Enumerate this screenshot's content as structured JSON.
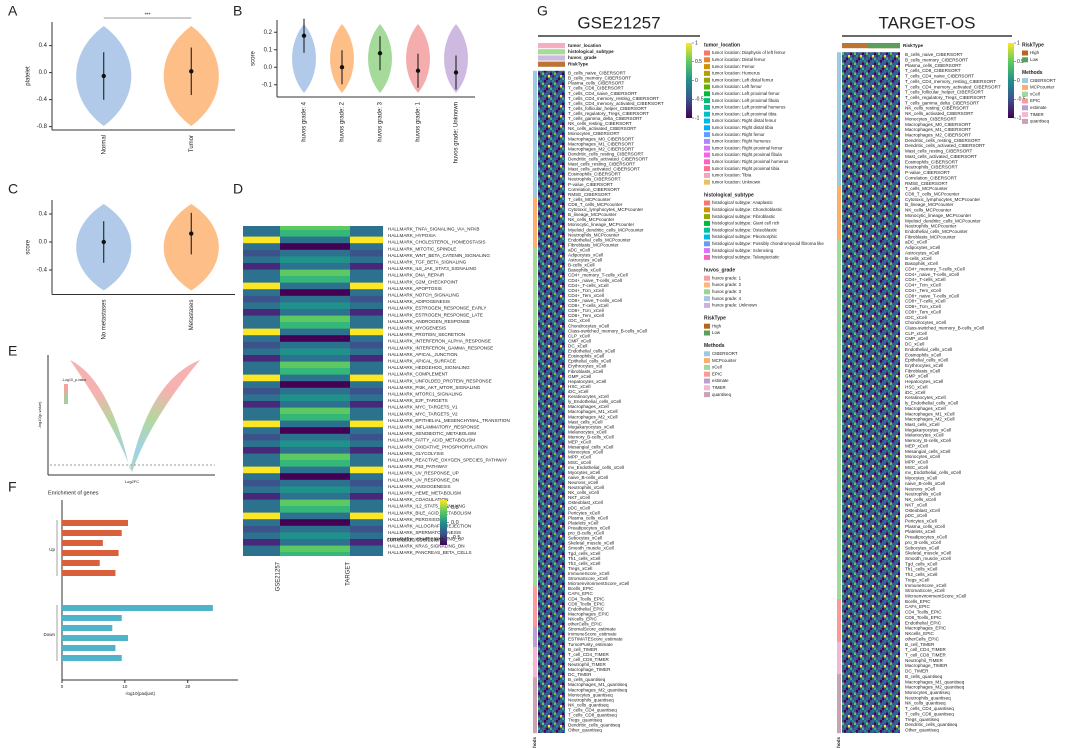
{
  "panel_labels": [
    "A",
    "B",
    "C",
    "D",
    "E",
    "F",
    "G"
  ],
  "chart_data": [
    {
      "type": "violin",
      "ylabel": "platelet",
      "categories": [
        "Normal",
        "Tumor"
      ],
      "values": [
        -0.05,
        0.02
      ],
      "colors": [
        "#a9c4e8",
        "#fdb77a"
      ],
      "ylim": [
        -0.85,
        0.75
      ],
      "yticks": [
        -0.8,
        -0.4,
        {
          "value": 0,
          "label": "0.0"
        },
        0.4
      ],
      "annotation": "***"
    },
    {
      "type": "violin",
      "ylabel": "score",
      "categories": [
        "huvos grade: 4",
        "huvos grade: 2",
        "huvos grade: 3",
        "huvos grade: 1",
        "huvos grade: Unknown"
      ],
      "values": [
        0.18,
        0.0,
        0.08,
        -0.02,
        -0.03
      ],
      "colors": [
        "#a9c4e8",
        "#fdb77a",
        "#9bd68f",
        "#f4a3a3",
        "#c9b3dd"
      ],
      "ylim": [
        -0.17,
        0.27
      ],
      "yticks": [
        -0.1,
        {
          "value": 0,
          "label": "0.0"
        },
        0.1,
        0.2
      ]
    },
    {
      "type": "violin",
      "ylabel": "score",
      "categories": [
        "No metastases",
        "Metastases"
      ],
      "values": [
        0.0,
        0.12
      ],
      "colors": [
        "#a9c4e8",
        "#fdb77a"
      ],
      "ylim": [
        -0.75,
        0.6
      ],
      "yticks": [
        -0.4,
        {
          "value": 0,
          "label": "0.0"
        },
        0.4
      ]
    },
    {
      "type": "heatmap",
      "columns": [
        "GSE21257",
        "TARGET"
      ],
      "rows": [
        "HALLMARK_TNFA_SIGNALING_VIA_NFKB",
        "HALLMARK_HYPOXIA",
        "HALLMARK_CHOLESTEROL_HOMEOSTASIS",
        "HALLMARK_MITOTIC_SPINDLE",
        "HALLMARK_WNT_BETA_CATENIN_SIGNALING",
        "HALLMARK_TGF_BETA_SIGNALING",
        "HALLMARK_IL6_JAK_STAT3_SIGNALING",
        "HALLMARK_DNA_REPAIR",
        "HALLMARK_G2M_CHECKPOINT",
        "HALLMARK_APOPTOSIS",
        "HALLMARK_NOTCH_SIGNALING",
        "HALLMARK_ADIPOGENESIS",
        "HALLMARK_ESTROGEN_RESPONSE_EARLY",
        "HALLMARK_ESTROGEN_RESPONSE_LATE",
        "HALLMARK_ANDROGEN_RESPONSE",
        "HALLMARK_MYOGENESIS",
        "HALLMARK_PROTEIN_SECRETION",
        "HALLMARK_INTERFERON_ALPHA_RESPONSE",
        "HALLMARK_INTERFERON_GAMMA_RESPONSE",
        "HALLMARK_APICAL_JUNCTION",
        "HALLMARK_APICAL_SURFACE",
        "HALLMARK_HEDGEHOG_SIGNALING",
        "HALLMARK_COMPLEMENT",
        "HALLMARK_UNFOLDED_PROTEIN_RESPONSE",
        "HALLMARK_PI3K_AKT_MTOR_SIGNALING",
        "HALLMARK_MTORC1_SIGNALING",
        "HALLMARK_E2F_TARGETS",
        "HALLMARK_MYC_TARGETS_V1",
        "HALLMARK_MYC_TARGETS_V2",
        "HALLMARK_EPITHELIAL_MESENCHYMAL_TRANSITION",
        "HALLMARK_INFLAMMATORY_RESPONSE",
        "HALLMARK_XENOBIOTIC_METABOLISM",
        "HALLMARK_FATTY_ACID_METABOLISM",
        "HALLMARK_OXIDATIVE_PHOSPHORYLATION",
        "HALLMARK_GLYCOLYSIS",
        "HALLMARK_REACTIVE_OXYGEN_SPECIES_PATHWAY",
        "HALLMARK_P53_PATHWAY",
        "HALLMARK_UV_RESPONSE_UP",
        "HALLMARK_UV_RESPONSE_DN",
        "HALLMARK_ANGIOGENESIS",
        "HALLMARK_HEME_METABOLISM",
        "HALLMARK_COAGULATION",
        "HALLMARK_IL2_STAT5_SIGNALING",
        "HALLMARK_BILE_ACID_METABOLISM",
        "HALLMARK_PEROXISOME",
        "HALLMARK_ALLOGRAFT_REJECTION",
        "HALLMARK_SPERMATOGENESIS",
        "HALLMARK_KRAS_SIGNALING_UP",
        "HALLMARK_KRAS_SIGNALING_DN",
        "HALLMARK_PANCREAS_BETA_CELLS"
      ],
      "legend_title": "correlation coefficient",
      "clim": [
        -0.75,
        0.75
      ],
      "cticks": [
        -0.5,
        {
          "value": 0,
          "label": "0.0"
        },
        0.5
      ]
    },
    {
      "type": "scatter",
      "xlabel": "Log2FC",
      "ylabel": "-log10(p-value)",
      "legend_title": "-Log10_p-value"
    },
    {
      "type": "barh",
      "title": "Enrichment of genes",
      "xlabel": "-log10(padjust)",
      "xlim": [
        0,
        28
      ],
      "xticks": [
        0,
        10,
        20
      ],
      "series": [
        {
          "name": "Up",
          "color": "#d9603b",
          "values": [
            10.5,
            9.5,
            6.5,
            9,
            6,
            8.5
          ]
        },
        {
          "name": "Down",
          "color": "#4fb3c9",
          "values": [
            24,
            9.5,
            8,
            10.5,
            8.5,
            9.5
          ]
        }
      ]
    }
  ],
  "figure_g": {
    "methods": {
      "title": "Methods",
      "items": [
        {
          "name": "CIBERSORT",
          "color": "#9ecae1"
        },
        {
          "name": "MCPcounter",
          "color": "#fdae6b"
        },
        {
          "name": "xCell",
          "color": "#a1d99b"
        },
        {
          "name": "EPIC",
          "color": "#fb9a99"
        },
        {
          "name": "estimate",
          "color": "#b9a0d0"
        },
        {
          "name": "TIMER",
          "color": "#f4b6d2"
        },
        {
          "name": "quantiseq",
          "color": "#c7a3b3"
        }
      ]
    },
    "left": {
      "title": "GSE21257",
      "strip_label": "Methods",
      "annotations": [
        "tumor_location",
        "histological_subtype",
        "huvos_grade",
        "RiskType"
      ],
      "clim": [
        -1,
        1
      ],
      "cticks": [
        1,
        0.5,
        0,
        -0.5,
        -1
      ],
      "legends": [
        {
          "title": "tumor_location",
          "items": [
            {
              "name": "tumor location: Diaphysis of left femur",
              "color": "#f8766d"
            },
            {
              "name": "tumor location: Distal femur",
              "color": "#e88526"
            },
            {
              "name": "tumor location: Femur",
              "color": "#d39200"
            },
            {
              "name": "tumor location: Humerus",
              "color": "#b79f00"
            },
            {
              "name": "tumor location: Left distal femur",
              "color": "#93aa00"
            },
            {
              "name": "tumor location: Left femur",
              "color": "#5eb300"
            },
            {
              "name": "tumor location: Left proximal femur",
              "color": "#00ba38"
            },
            {
              "name": "tumor location: Left proximal fibula",
              "color": "#00bf74"
            },
            {
              "name": "tumor location: Left proximal humerus",
              "color": "#00c19f"
            },
            {
              "name": "tumor location: Left proximal tibia",
              "color": "#00bfc4"
            },
            {
              "name": "tumor location: Right distal femur",
              "color": "#00b9e3"
            },
            {
              "name": "tumor location: Right distal tibia",
              "color": "#00adfa"
            },
            {
              "name": "tumor location: Right femur",
              "color": "#619cff"
            },
            {
              "name": "tumor location: Right humerus",
              "color": "#ae87ff"
            },
            {
              "name": "tumor location: Right proximal femur",
              "color": "#db72fb"
            },
            {
              "name": "tumor location: Right proximal fibula",
              "color": "#f564e3"
            },
            {
              "name": "tumor location: Right proximal humerus",
              "color": "#ff61c3"
            },
            {
              "name": "tumor location: Right proximal tibia",
              "color": "#ff6c91"
            },
            {
              "name": "tumor location: Tibia",
              "color": "#f3a6b8"
            },
            {
              "name": "tumor location: Unknown",
              "color": "#e6c35c"
            }
          ]
        },
        {
          "title": "histological_subtype",
          "items": [
            {
              "name": "histological subtype: Anaplastic",
              "color": "#f8766d"
            },
            {
              "name": "histological subtype: Chondroblastic",
              "color": "#d39200"
            },
            {
              "name": "histological subtype: Fibroblastic",
              "color": "#93aa00"
            },
            {
              "name": "histological subtype: Giant cell rich",
              "color": "#00ba38"
            },
            {
              "name": "histological subtype: Osteoblastic",
              "color": "#00c19f"
            },
            {
              "name": "histological subtype: Pleomorphic",
              "color": "#00b9e3"
            },
            {
              "name": "histological subtype: Possibly chondromyxoid fibroma like",
              "color": "#619cff"
            },
            {
              "name": "histological subtype: Sclerosing",
              "color": "#db72fb"
            },
            {
              "name": "histological subtype: Telangiectatic",
              "color": "#ff61c3"
            }
          ]
        },
        {
          "title": "huvos_grade",
          "items": [
            {
              "name": "huvos grade: 1",
              "color": "#f4a3a3"
            },
            {
              "name": "huvos grade: 2",
              "color": "#fdb77a"
            },
            {
              "name": "huvos grade: 3",
              "color": "#9bd68f"
            },
            {
              "name": "huvos grade: 4",
              "color": "#a9c4e8"
            },
            {
              "name": "huvos grade: Unknown",
              "color": "#c9b3dd"
            }
          ]
        },
        {
          "title": "RiskType",
          "items": [
            {
              "name": "High",
              "color": "#b5651d"
            },
            {
              "name": "Low",
              "color": "#5aa05a"
            }
          ]
        }
      ],
      "rows": [
        "B_cells_naive_CIBERSORT",
        "B_cells_memory_CIBERSORT",
        "Plasma_cells_CIBERSORT",
        "T_cells_CD8_CIBERSORT",
        "T_cells_CD4_naive_CIBERSORT",
        "T_cells_CD4_memory_resting_CIBERSORT",
        "T_cells_CD4_memory_activated_CIBERSORT",
        "T_cells_follicular_helper_CIBERSORT",
        "T_cells_regulatory_Tregs_CIBERSORT",
        "T_cells_gamma_delta_CIBERSORT",
        "NK_cells_resting_CIBERSORT",
        "NK_cells_activated_CIBERSORT",
        "Monocytes_CIBERSORT",
        "Macrophages_M0_CIBERSORT",
        "Macrophages_M1_CIBERSORT",
        "Macrophages_M2_CIBERSORT",
        "Dendritic_cells_resting_CIBERSORT",
        "Dendritic_cells_activated_CIBERSORT",
        "Mast_cells_resting_CIBERSORT",
        "Mast_cells_activated_CIBERSORT",
        "Eosinophils_CIBERSORT",
        "Neutrophils_CIBERSORT",
        "P-value_CIBERSORT",
        "Correlation_CIBERSORT",
        "RMSE_CIBERSORT",
        "T_cells_MCPcounter",
        "CD8_T_cells_MCPcounter",
        "Cytotoxic_lymphocytes_MCPcounter",
        "B_lineage_MCPcounter",
        "NK_cells_MCPcounter",
        "Monocytic_lineage_MCPcounter",
        "Myeloid_dendritic_cells_MCPcounter",
        "Neutrophils_MCPcounter",
        "Endothelial_cells_MCPcounter",
        "Fibroblasts_MCPcounter",
        "aDC_xCell",
        "Adipocytes_xCell",
        "Astrocytes_xCell",
        "B-cells_xCell",
        "Basophils_xCell",
        "CD4+_memory_T-cells_xCell",
        "CD4+_naive_T-cells_xCell",
        "CD4+_T-cells_xCell",
        "CD4+_Tcm_xCell",
        "CD4+_Tem_xCell",
        "CD8+_naive_T-cells_xCell",
        "CD8+_T-cells_xCell",
        "CD8+_Tcm_xCell",
        "CD8+_Tem_xCell",
        "cDC_xCell",
        "Chondrocytes_xCell",
        "Class-switched_memory_B-cells_xCell",
        "CLP_xCell",
        "CMP_xCell",
        "DC_xCell",
        "Endothelial_cells_xCell",
        "Eosinophils_xCell",
        "Epithelial_cells_xCell",
        "Erythrocytes_xCell",
        "Fibroblasts_xCell",
        "GMP_xCell",
        "Hepatocytes_xCell",
        "HSC_xCell",
        "iDC_xCell",
        "Keratinocytes_xCell",
        "ly_Endothelial_cells_xCell",
        "Macrophages_xCell",
        "Macrophages_M1_xCell",
        "Macrophages_M2_xCell",
        "Mast_cells_xCell",
        "Megakaryocytes_xCell",
        "Melanocytes_xCell",
        "Memory_B-cells_xCell",
        "MEP_xCell",
        "Mesangial_cells_xCell",
        "Monocytes_xCell",
        "MPP_xCell",
        "MSC_xCell",
        "mv_Endothelial_cells_xCell",
        "Myocytes_xCell",
        "naive_B-cells_xCell",
        "Neurons_xCell",
        "Neutrophils_xCell",
        "NK_cells_xCell",
        "NKT_xCell",
        "Osteoblast_xCell",
        "pDC_xCell",
        "Pericytes_xCell",
        "Plasma_cells_xCell",
        "Platelets_xCell",
        "Preadipocytes_xCell",
        "pro_B-cells_xCell",
        "Sebocytes_xCell",
        "Skeletal_muscle_xCell",
        "Smooth_muscle_xCell",
        "Tgd_cells_xCell",
        "Th1_cells_xCell",
        "Th2_cells_xCell",
        "Tregs_xCell",
        "ImmuneScore_xCell",
        "StromaScore_xCell",
        "MicroenvironmentScore_xCell",
        "Bcells_EPIC",
        "CAFs_EPIC",
        "CD4_Tcells_EPIC",
        "CD8_Tcells_EPIC",
        "Endothelial_EPIC",
        "Macrophages_EPIC",
        "NKcells_EPIC",
        "otherCells_EPIC",
        "StromalScore_estimate",
        "ImmuneScore_estimate",
        "ESTIMATEScore_estimate",
        "TumorPurity_estimate",
        "B_cell_TIMER",
        "T_cell_CD4_TIMER",
        "T_cell_CD8_TIMER",
        "Neutrophil_TIMER",
        "Macrophage_TIMER",
        "DC_TIMER",
        "B_cells_quantiseq",
        "Macrophages_M1_quantiseq",
        "Macrophages_M2_quantiseq",
        "Monocytes_quantiseq",
        "Neutrophils_quantiseq",
        "NK_cells_quantiseq",
        "T_cells_CD4_quantiseq",
        "T_cells_CD8_quantiseq",
        "Tregs_quantiseq",
        "Dendritic_cells_quantiseq",
        "Other_quantiseq"
      ]
    },
    "right": {
      "title": "TARGET-OS",
      "strip_label": "Methods",
      "annotations": [
        "RiskType"
      ],
      "clim": [
        -1,
        1
      ],
      "cticks": [
        1,
        0.5,
        0,
        -0.5,
        -1
      ],
      "legends": [
        {
          "title": "RiskType",
          "items": [
            {
              "name": "High",
              "color": "#b5651d"
            },
            {
              "name": "Low",
              "color": "#5aa05a"
            }
          ]
        }
      ],
      "rows": [
        "B_cells_naive_CIBERSORT",
        "B_cells_memory_CIBERSORT",
        "Plasma_cells_CIBERSORT",
        "T_cells_CD8_CIBERSORT",
        "T_cells_CD4_naive_CIBERSORT",
        "T_cells_CD4_memory_resting_CIBERSORT",
        "T_cells_CD4_memory_activated_CIBERSORT",
        "T_cells_follicular_helper_CIBERSORT",
        "T_cells_regulatory_Tregs_CIBERSORT",
        "T_cells_gamma_delta_CIBERSORT",
        "NK_cells_resting_CIBERSORT",
        "NK_cells_activated_CIBERSORT",
        "Monocytes_CIBERSORT",
        "Macrophages_M0_CIBERSORT",
        "Macrophages_M1_CIBERSORT",
        "Macrophages_M2_CIBERSORT",
        "Dendritic_cells_resting_CIBERSORT",
        "Dendritic_cells_activated_CIBERSORT",
        "Mast_cells_resting_CIBERSORT",
        "Mast_cells_activated_CIBERSORT",
        "Eosinophils_CIBERSORT",
        "Neutrophils_CIBERSORT",
        "P-value_CIBERSORT",
        "Correlation_CIBERSORT",
        "RMSE_CIBERSORT",
        "T_cells_MCPcounter",
        "CD8_T_cells_MCPcounter",
        "Cytotoxic_lymphocytes_MCPcounter",
        "B_lineage_MCPcounter",
        "NK_cells_MCPcounter",
        "Monocytic_lineage_MCPcounter",
        "Myeloid_dendritic_cells_MCPcounter",
        "Neutrophils_MCPcounter",
        "Endothelial_cells_MCPcounter",
        "Fibroblasts_MCPcounter",
        "aDC_xCell",
        "Adipocytes_xCell",
        "Astrocytes_xCell",
        "B-cells_xCell",
        "Basophils_xCell",
        "CD4+_memory_T-cells_xCell",
        "CD4+_naive_T-cells_xCell",
        "CD4+_T-cells_xCell",
        "CD4+_Tcm_xCell",
        "CD4+_Tem_xCell",
        "CD8+_naive_T-cells_xCell",
        "CD8+_T-cells_xCell",
        "CD8+_Tcm_xCell",
        "CD8+_Tem_xCell",
        "cDC_xCell",
        "Chondrocytes_xCell",
        "Class-switched_memory_B-cells_xCell",
        "CLP_xCell",
        "CMP_xCell",
        "DC_xCell",
        "Endothelial_cells_xCell",
        "Eosinophils_xCell",
        "Epithelial_cells_xCell",
        "Erythrocytes_xCell",
        "Fibroblasts_xCell",
        "GMP_xCell",
        "Hepatocytes_xCell",
        "HSC_xCell",
        "iDC_xCell",
        "Keratinocytes_xCell",
        "ly_Endothelial_cells_xCell",
        "Macrophages_xCell",
        "Macrophages_M1_xCell",
        "Macrophages_M2_xCell",
        "Mast_cells_xCell",
        "Megakaryocytes_xCell",
        "Melanocytes_xCell",
        "Memory_B-cells_xCell",
        "MEP_xCell",
        "Mesangial_cells_xCell",
        "Monocytes_xCell",
        "MPP_xCell",
        "MSC_xCell",
        "mv_Endothelial_cells_xCell",
        "Myocytes_xCell",
        "naive_B-cells_xCell",
        "Neurons_xCell",
        "Neutrophils_xCell",
        "NK_cells_xCell",
        "NKT_xCell",
        "Osteoblast_xCell",
        "pDC_xCell",
        "Pericytes_xCell",
        "Plasma_cells_xCell",
        "Platelets_xCell",
        "Preadipocytes_xCell",
        "pro_B-cells_xCell",
        "Sebocytes_xCell",
        "Skeletal_muscle_xCell",
        "Smooth_muscle_xCell",
        "Tgd_cells_xCell",
        "Th1_cells_xCell",
        "Th2_cells_xCell",
        "Tregs_xCell",
        "ImmuneScore_xCell",
        "StromaScore_xCell",
        "MicroenvironmentScore_xCell",
        "Bcells_EPIC",
        "CAFs_EPIC",
        "CD4_Tcells_EPIC",
        "CD8_Tcells_EPIC",
        "Endothelial_EPIC",
        "Macrophages_EPIC",
        "NKcells_EPIC",
        "otherCells_EPIC",
        "B_cell_TIMER",
        "T_cell_CD4_TIMER",
        "T_cell_CD8_TIMER",
        "Neutrophil_TIMER",
        "Macrophage_TIMER",
        "DC_TIMER",
        "B_cells_quantiseq",
        "Macrophages_M1_quantiseq",
        "Macrophages_M2_quantiseq",
        "Monocytes_quantiseq",
        "Neutrophils_quantiseq",
        "NK_cells_quantiseq",
        "T_cells_CD4_quantiseq",
        "T_cells_CD8_quantiseq",
        "Tregs_quantiseq",
        "Dendritic_cells_quantiseq",
        "Other_quantiseq"
      ]
    }
  }
}
